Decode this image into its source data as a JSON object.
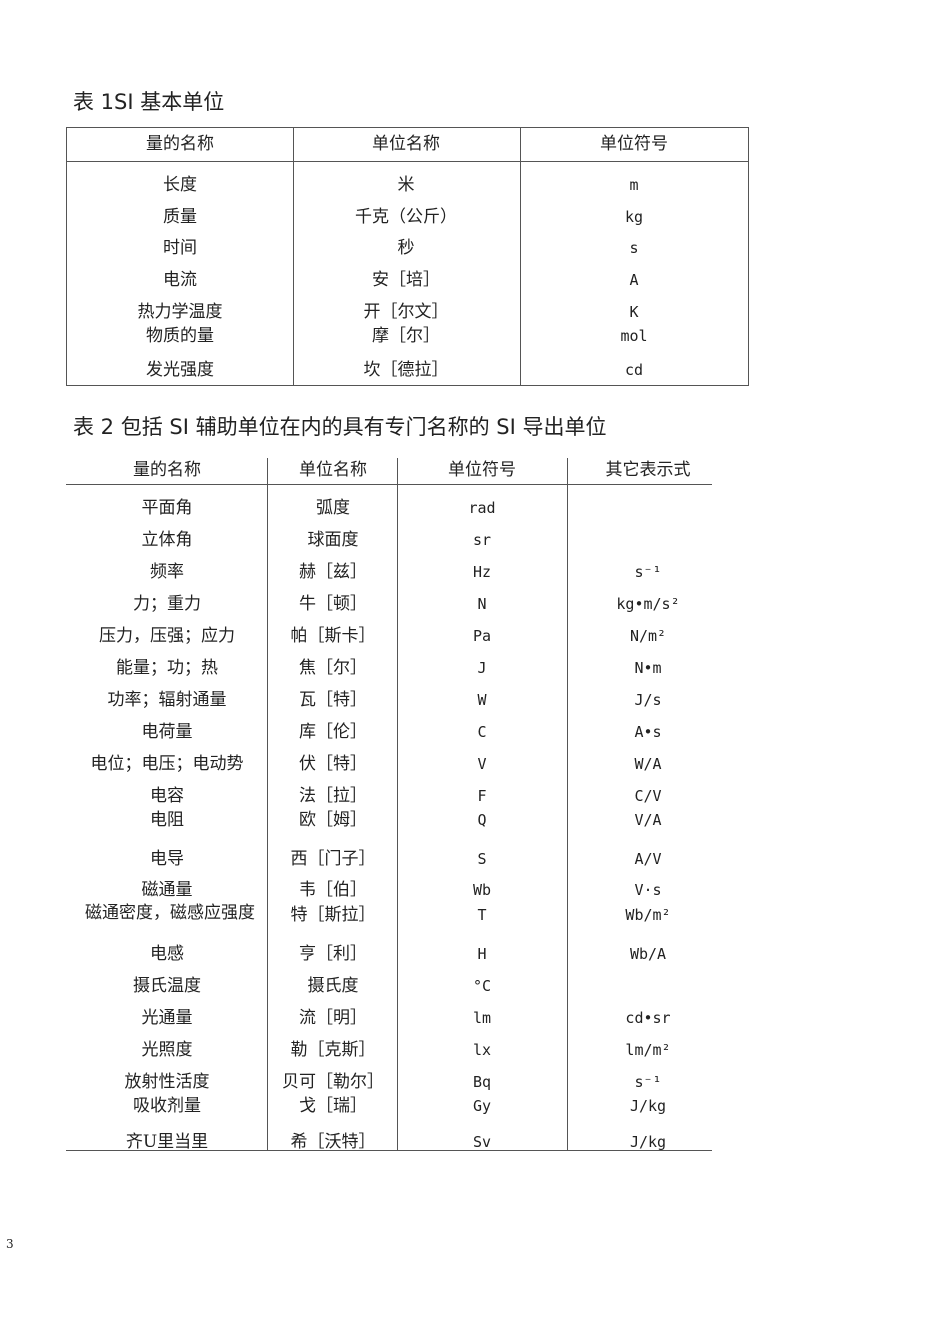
{
  "table1": {
    "caption": "表 1SI 基本单位",
    "header": [
      "量的名称",
      "单位名称",
      "单位符号"
    ],
    "rows": [
      [
        "长度",
        "米",
        "m"
      ],
      [
        "质量",
        "千克（公斤）",
        "kg"
      ],
      [
        "时间",
        "秒",
        "s"
      ],
      [
        "电流",
        "安［培］",
        "A"
      ],
      [
        "热力学温度",
        "开［尔文］",
        "K"
      ],
      [
        "物质的量",
        "摩［尔］",
        "mol"
      ],
      [
        "发光强度",
        "坎［德拉］",
        "cd"
      ]
    ]
  },
  "table2": {
    "caption": "表 2 包括 SI 辅助单位在内的具有专门名称的 SI 导出单位",
    "header": [
      "量的名称",
      "单位名称",
      "单位符号",
      "其它表示式"
    ],
    "rows": [
      [
        "平面角",
        "弧度",
        "rad",
        null
      ],
      [
        "立体角",
        "球面度",
        "sr",
        null
      ],
      [
        "频率",
        "赫［兹］",
        "Hz",
        "s⁻¹"
      ],
      [
        "力；重力",
        "牛［顿］",
        "N",
        "kg•m/s²"
      ],
      [
        "压力，压强；应力",
        "帕［斯卡］",
        "Pa",
        "N/m²"
      ],
      [
        "能量；功；热",
        "焦［尔］",
        "J",
        "N•m"
      ],
      [
        "功率；辐射通量",
        "瓦［特］",
        "W",
        "J/s"
      ],
      [
        "电荷量",
        "库［伦］",
        "C",
        "A•s"
      ],
      [
        "电位；电压；电动势",
        "伏［特］",
        "V",
        "W/A"
      ],
      [
        "电容",
        "法［拉］",
        "F",
        "C/V"
      ],
      [
        "电阻",
        "欧［姆］",
        "Q",
        "V/A"
      ],
      [
        "电导",
        "西［门子］",
        "S",
        "A/V"
      ],
      [
        "磁通量",
        "韦［伯］",
        "Wb",
        "V·s"
      ],
      [
        "磁通密度，磁感应强度",
        "特［斯拉］",
        "T",
        "Wb/m²"
      ],
      [
        "电感",
        "亨［利］",
        "H",
        "Wb/A"
      ],
      [
        "摄氏温度",
        "摄氏度",
        "°C",
        null
      ],
      [
        "光通量",
        "流［明］",
        "lm",
        "cd•sr"
      ],
      [
        "光照度",
        "勒［克斯］",
        "lx",
        "lm/m²"
      ],
      [
        "放射性活度",
        "贝可［勒尔］",
        "Bq",
        "s⁻¹"
      ],
      [
        "吸收剂量",
        "戈［瑞］",
        "Gy",
        "J/kg"
      ],
      [
        "齐U里当里",
        "希［沃特］",
        "Sv",
        "J/kg"
      ]
    ]
  },
  "page_number": "3"
}
